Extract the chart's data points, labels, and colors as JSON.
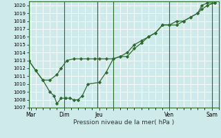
{
  "title": "",
  "xlabel": "Pression niveau de la mer( hPa )",
  "ylabel": "",
  "background_color": "#ceeaea",
  "grid_color": "#ffffff",
  "line_color": "#2d6a2d",
  "marker_color": "#2d6a2d",
  "ylim": [
    1007,
    1020.5
  ],
  "yticks": [
    1007,
    1008,
    1009,
    1010,
    1011,
    1012,
    1013,
    1014,
    1015,
    1016,
    1017,
    1018,
    1019,
    1020
  ],
  "line1_x": [
    0.0,
    0.5,
    1.0,
    1.5,
    2.0,
    2.3,
    2.7,
    3.2,
    3.7,
    4.2,
    4.7,
    5.0,
    5.5,
    6.0,
    6.5,
    7.0,
    7.5,
    8.0,
    8.5,
    9.0,
    9.5,
    10.0,
    10.5,
    11.0,
    11.5,
    12.0,
    12.3,
    12.7,
    13.2
  ],
  "line1_y": [
    1013.0,
    1011.7,
    1010.5,
    1010.5,
    1011.2,
    1012.0,
    1013.0,
    1013.2,
    1013.2,
    1013.2,
    1013.2,
    1013.2,
    1013.2,
    1013.2,
    1013.5,
    1014.0,
    1015.0,
    1015.5,
    1016.0,
    1016.5,
    1017.5,
    1017.5,
    1018.0,
    1018.0,
    1018.5,
    1019.0,
    1019.5,
    1020.0,
    1020.3
  ],
  "line2_x": [
    0.0,
    0.5,
    1.0,
    1.5,
    1.8,
    2.0,
    2.3,
    2.6,
    2.9,
    3.2,
    3.5,
    3.8,
    4.2,
    5.0,
    5.5,
    6.0,
    6.5,
    7.0,
    7.5,
    8.0,
    8.5,
    9.0,
    9.5,
    10.0,
    10.5,
    11.0,
    11.5,
    12.0,
    12.3,
    12.7,
    13.2
  ],
  "line2_y": [
    1013.0,
    1011.7,
    1010.5,
    1009.0,
    1008.5,
    1007.5,
    1008.2,
    1008.2,
    1008.2,
    1008.0,
    1008.0,
    1008.5,
    1010.0,
    1010.2,
    1011.5,
    1013.2,
    1013.5,
    1013.5,
    1014.5,
    1015.2,
    1016.0,
    1016.5,
    1017.5,
    1017.5,
    1017.5,
    1018.0,
    1018.5,
    1019.0,
    1020.0,
    1020.3,
    1020.3
  ],
  "vlines_x": [
    2.5,
    4.9,
    6.0,
    10.0,
    13.0
  ],
  "major_xticks_x": [
    0.15,
    2.5,
    5.0,
    6.0,
    10.0,
    13.0
  ],
  "major_xtick_labels": [
    "Mar",
    "Dim",
    "Jeu",
    "",
    "Ven",
    "Sam"
  ]
}
